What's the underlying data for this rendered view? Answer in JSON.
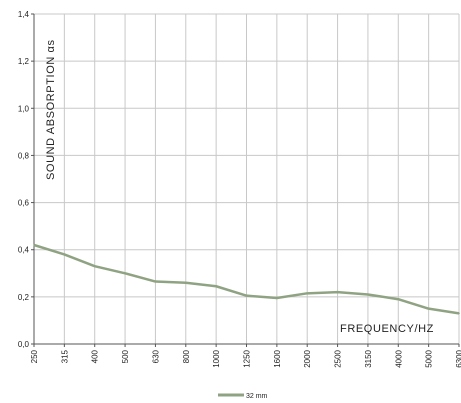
{
  "chart_data": {
    "type": "line",
    "ylabel": "SOUND ABSORPTION αs",
    "xlabel": "FREQUENCY/HZ",
    "categories": [
      "250",
      "315",
      "400",
      "500",
      "630",
      "800",
      "1000",
      "1250",
      "1600",
      "2000",
      "2500",
      "3150",
      "4000",
      "5000",
      "6300"
    ],
    "ylim": [
      0,
      1.4
    ],
    "yticks": [
      "0,0",
      "0,2",
      "0,4",
      "0,6",
      "0,8",
      "1,0",
      "1,2",
      "1,4"
    ],
    "series": [
      {
        "name": "32 mm",
        "color": "#8fa382",
        "values": [
          0.42,
          0.38,
          0.33,
          0.3,
          0.265,
          0.26,
          0.245,
          0.205,
          0.195,
          0.215,
          0.22,
          0.21,
          0.19,
          0.15,
          0.13
        ]
      }
    ],
    "grid": true,
    "legend": "bottom-center"
  }
}
